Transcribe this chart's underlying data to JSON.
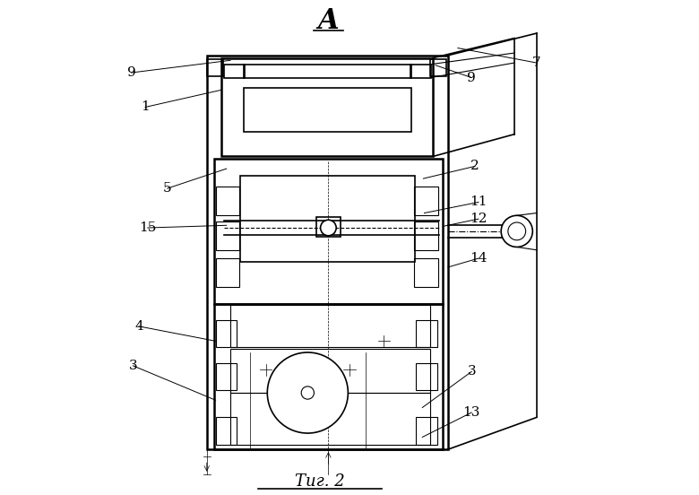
{
  "bg_color": "#ffffff",
  "line_color": "#000000",
  "title_A": "A",
  "caption": "Τиг. 2"
}
